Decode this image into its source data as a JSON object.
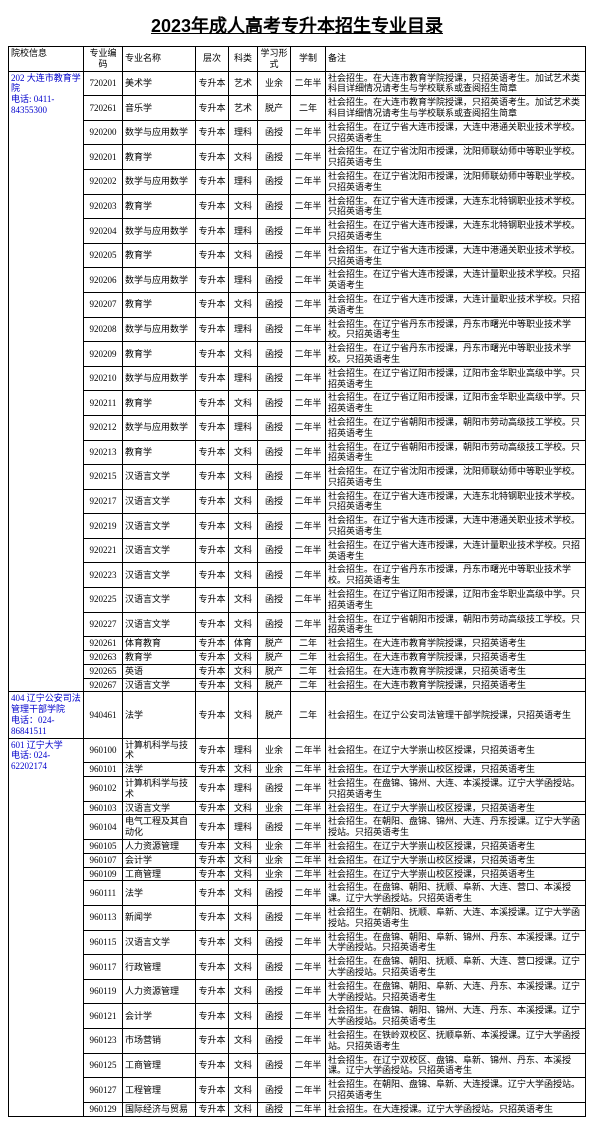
{
  "title": "2023年成人高考专升本招生专业目录",
  "headers": [
    "院校信息",
    "专业编码",
    "专业名称",
    "层次",
    "科类",
    "学习形式",
    "学制",
    "备注"
  ],
  "schools": [
    {
      "info": "202 大连市教育学院\n电话: 0411-84355300",
      "rows": [
        {
          "code": "720201",
          "major": "美术学",
          "level": "专升本",
          "subj": "艺术",
          "mode": "业余",
          "dur": "二年半",
          "remark": "社会招生。在大连市教育学院授课，只招英语考生。加试艺术类科目详细情况请考生与学校联系或查阅招生简章"
        },
        {
          "code": "720261",
          "major": "音乐学",
          "level": "专升本",
          "subj": "艺术",
          "mode": "脱产",
          "dur": "二年",
          "remark": "社会招生。在大连市教育学院授课，只招英语考生。加试艺术类科目详细情况请考生与学校联系或查阅招生简章"
        },
        {
          "code": "920200",
          "major": "数学与应用数学",
          "level": "专升本",
          "subj": "理科",
          "mode": "函授",
          "dur": "二年半",
          "remark": "社会招生。在辽宁省大连市授课，大连中港通关职业技术学校。只招英语考生"
        },
        {
          "code": "920201",
          "major": "教育学",
          "level": "专升本",
          "subj": "文科",
          "mode": "函授",
          "dur": "二年半",
          "remark": "社会招生。在辽宁省沈阳市授课，沈阳师联幼师中等职业学校。只招英语考生"
        },
        {
          "code": "920202",
          "major": "数学与应用数学",
          "level": "专升本",
          "subj": "理科",
          "mode": "函授",
          "dur": "二年半",
          "remark": "社会招生。在辽宁省沈阳市授课，沈阳师联幼师中等职业学校。只招英语考生"
        },
        {
          "code": "920203",
          "major": "教育学",
          "level": "专升本",
          "subj": "文科",
          "mode": "函授",
          "dur": "二年半",
          "remark": "社会招生。在辽宁省大连市授课，大连东北特钢职业技术学校。只招英语考生"
        },
        {
          "code": "920204",
          "major": "数学与应用数学",
          "level": "专升本",
          "subj": "理科",
          "mode": "函授",
          "dur": "二年半",
          "remark": "社会招生。在辽宁省大连市授课，大连东北特钢职业技术学校。只招英语考生"
        },
        {
          "code": "920205",
          "major": "教育学",
          "level": "专升本",
          "subj": "文科",
          "mode": "函授",
          "dur": "二年半",
          "remark": "社会招生。在辽宁省大连市授课，大连中港通关职业技术学校。只招英语考生"
        },
        {
          "code": "920206",
          "major": "数学与应用数学",
          "level": "专升本",
          "subj": "理科",
          "mode": "函授",
          "dur": "二年半",
          "remark": "社会招生。在辽宁省大连市授课，大连计量职业技术学校。只招英语考生"
        },
        {
          "code": "920207",
          "major": "教育学",
          "level": "专升本",
          "subj": "文科",
          "mode": "函授",
          "dur": "二年半",
          "remark": "社会招生。在辽宁省大连市授课，大连计量职业技术学校。只招英语考生"
        },
        {
          "code": "920208",
          "major": "数学与应用数学",
          "level": "专升本",
          "subj": "理科",
          "mode": "函授",
          "dur": "二年半",
          "remark": "社会招生。在辽宁省丹东市授课，丹东市曙光中等职业技术学校。只招英语考生"
        },
        {
          "code": "920209",
          "major": "教育学",
          "level": "专升本",
          "subj": "文科",
          "mode": "函授",
          "dur": "二年半",
          "remark": "社会招生。在辽宁省丹东市授课，丹东市曙光中等职业技术学校。只招英语考生"
        },
        {
          "code": "920210",
          "major": "数学与应用数学",
          "level": "专升本",
          "subj": "理科",
          "mode": "函授",
          "dur": "二年半",
          "remark": "社会招生。在辽宁省辽阳市授课，辽阳市金华职业高级中学。只招英语考生"
        },
        {
          "code": "920211",
          "major": "教育学",
          "level": "专升本",
          "subj": "文科",
          "mode": "函授",
          "dur": "二年半",
          "remark": "社会招生。在辽宁省辽阳市授课，辽阳市金华职业高级中学。只招英语考生"
        },
        {
          "code": "920212",
          "major": "数学与应用数学",
          "level": "专升本",
          "subj": "理科",
          "mode": "函授",
          "dur": "二年半",
          "remark": "社会招生。在辽宁省朝阳市授课，朝阳市劳动高级技工学校。只招英语考生"
        },
        {
          "code": "920213",
          "major": "教育学",
          "level": "专升本",
          "subj": "文科",
          "mode": "函授",
          "dur": "二年半",
          "remark": "社会招生。在辽宁省朝阳市授课，朝阳市劳动高级技工学校。只招英语考生"
        },
        {
          "code": "920215",
          "major": "汉语言文学",
          "level": "专升本",
          "subj": "文科",
          "mode": "函授",
          "dur": "二年半",
          "remark": "社会招生。在辽宁省沈阳市授课，沈阳师联幼师中等职业学校。只招英语考生"
        },
        {
          "code": "920217",
          "major": "汉语言文学",
          "level": "专升本",
          "subj": "文科",
          "mode": "函授",
          "dur": "二年半",
          "remark": "社会招生。在辽宁省大连市授课，大连东北特钢职业技术学校。只招英语考生"
        },
        {
          "code": "920219",
          "major": "汉语言文学",
          "level": "专升本",
          "subj": "文科",
          "mode": "函授",
          "dur": "二年半",
          "remark": "社会招生。在辽宁省大连市授课，大连中港通关职业技术学校。只招英语考生"
        },
        {
          "code": "920221",
          "major": "汉语言文学",
          "level": "专升本",
          "subj": "文科",
          "mode": "函授",
          "dur": "二年半",
          "remark": "社会招生。在辽宁省大连市授课，大连计量职业技术学校。只招英语考生"
        },
        {
          "code": "920223",
          "major": "汉语言文学",
          "level": "专升本",
          "subj": "文科",
          "mode": "函授",
          "dur": "二年半",
          "remark": "社会招生。在辽宁省丹东市授课，丹东市曙光中等职业技术学校。只招英语考生"
        },
        {
          "code": "920225",
          "major": "汉语言文学",
          "level": "专升本",
          "subj": "文科",
          "mode": "函授",
          "dur": "二年半",
          "remark": "社会招生。在辽宁省辽阳市授课，辽阳市金华职业高级中学。只招英语考生"
        },
        {
          "code": "920227",
          "major": "汉语言文学",
          "level": "专升本",
          "subj": "文科",
          "mode": "函授",
          "dur": "二年半",
          "remark": "社会招生。在辽宁省朝阳市授课，朝阳市劳动高级技工学校。只招英语考生"
        },
        {
          "code": "920261",
          "major": "体育教育",
          "level": "专升本",
          "subj": "体育",
          "mode": "脱产",
          "dur": "二年",
          "remark": "社会招生。在大连市教育学院授课，只招英语考生"
        },
        {
          "code": "920263",
          "major": "教育学",
          "level": "专升本",
          "subj": "文科",
          "mode": "脱产",
          "dur": "二年",
          "remark": "社会招生。在大连市教育学院授课，只招英语考生"
        },
        {
          "code": "920265",
          "major": "英语",
          "level": "专升本",
          "subj": "文科",
          "mode": "脱产",
          "dur": "二年",
          "remark": "社会招生。在大连市教育学院授课，只招英语考生"
        },
        {
          "code": "920267",
          "major": "汉语言文学",
          "level": "专升本",
          "subj": "文科",
          "mode": "脱产",
          "dur": "二年",
          "remark": "社会招生。在大连市教育学院授课，只招英语考生"
        }
      ]
    },
    {
      "info": "404 辽宁公安司法管理干部学院\n电话：024-86841511",
      "rows": [
        {
          "code": "940461",
          "major": "法学",
          "level": "专升本",
          "subj": "文科",
          "mode": "脱产",
          "dur": "二年",
          "remark": "社会招生。在辽宁公安司法管理干部学院授课，只招英语考生"
        }
      ]
    },
    {
      "info": "601 辽宁大学\n电话: 024-62202174",
      "rows": [
        {
          "code": "960100",
          "major": "计算机科学与技术",
          "level": "专升本",
          "subj": "理科",
          "mode": "业余",
          "dur": "二年半",
          "remark": "社会招生。在辽宁大学崇山校区授课，只招英语考生"
        },
        {
          "code": "960101",
          "major": "法学",
          "level": "专升本",
          "subj": "文科",
          "mode": "业余",
          "dur": "二年半",
          "remark": "社会招生。在辽宁大学崇山校区授课，只招英语考生"
        },
        {
          "code": "960102",
          "major": "计算机科学与技术",
          "level": "专升本",
          "subj": "理科",
          "mode": "函授",
          "dur": "二年半",
          "remark": "社会招生。在盘锦、锦州、大连、本溪授课。辽宁大学函授站。只招英语考生"
        },
        {
          "code": "960103",
          "major": "汉语言文学",
          "level": "专升本",
          "subj": "文科",
          "mode": "业余",
          "dur": "二年半",
          "remark": "社会招生。在辽宁大学崇山校区授课，只招英语考生"
        },
        {
          "code": "960104",
          "major": "电气工程及其自动化",
          "level": "专升本",
          "subj": "理科",
          "mode": "函授",
          "dur": "二年半",
          "remark": "社会招生。在朝阳、盘锦、锦州、大连、丹东授课。辽宁大学函授站。只招英语考生"
        },
        {
          "code": "960105",
          "major": "人力资源管理",
          "level": "专升本",
          "subj": "文科",
          "mode": "业余",
          "dur": "二年半",
          "remark": "社会招生。在辽宁大学崇山校区授课，只招英语考生"
        },
        {
          "code": "960107",
          "major": "会计学",
          "level": "专升本",
          "subj": "文科",
          "mode": "业余",
          "dur": "二年半",
          "remark": "社会招生。在辽宁大学崇山校区授课，只招英语考生"
        },
        {
          "code": "960109",
          "major": "工商管理",
          "level": "专升本",
          "subj": "文科",
          "mode": "业余",
          "dur": "二年半",
          "remark": "社会招生。在辽宁大学崇山校区授课，只招英语考生"
        },
        {
          "code": "960111",
          "major": "法学",
          "level": "专升本",
          "subj": "文科",
          "mode": "函授",
          "dur": "二年半",
          "remark": "社会招生。在盘锦、朝阳、抚顺、阜新、大连、营口、本溪授课。辽宁大学函授站。只招英语考生"
        },
        {
          "code": "960113",
          "major": "新闻学",
          "level": "专升本",
          "subj": "文科",
          "mode": "函授",
          "dur": "二年半",
          "remark": "社会招生。在朝阳、抚顺、阜新、大连、本溪授课。辽宁大学函授站。只招英语考生"
        },
        {
          "code": "960115",
          "major": "汉语言文学",
          "level": "专升本",
          "subj": "文科",
          "mode": "函授",
          "dur": "二年半",
          "remark": "社会招生。在盘锦、朝阳、阜新、锦州、丹东、本溪授课。辽宁大学函授站。只招英语考生"
        },
        {
          "code": "960117",
          "major": "行政管理",
          "level": "专升本",
          "subj": "文科",
          "mode": "函授",
          "dur": "二年半",
          "remark": "社会招生。在盘锦、朝阳、抚顺、阜新、大连、营口授课。辽宁大学函授站。只招英语考生"
        },
        {
          "code": "960119",
          "major": "人力资源管理",
          "level": "专升本",
          "subj": "文科",
          "mode": "函授",
          "dur": "二年半",
          "remark": "社会招生。在盘锦、朝阳、阜新、大连、丹东、本溪授课。辽宁大学函授站。只招英语考生"
        },
        {
          "code": "960121",
          "major": "会计学",
          "level": "专升本",
          "subj": "文科",
          "mode": "函授",
          "dur": "二年半",
          "remark": "社会招生。在盘锦、朝阳、锦州、大连、丹东、本溪授课。辽宁大学函授站。只招英语考生"
        },
        {
          "code": "960123",
          "major": "市场营销",
          "level": "专升本",
          "subj": "文科",
          "mode": "函授",
          "dur": "二年半",
          "remark": "社会招生。在铁岭双校区、抚顺阜新、本溪授课。辽宁大学函授站。只招英语考生"
        },
        {
          "code": "960125",
          "major": "工商管理",
          "level": "专升本",
          "subj": "文科",
          "mode": "函授",
          "dur": "二年半",
          "remark": "社会招生。在辽宁双校区、盘锦、阜新、锦州、丹东、本溪授课。辽宁大学函授站。只招英语考生"
        },
        {
          "code": "960127",
          "major": "工程管理",
          "level": "专升本",
          "subj": "文科",
          "mode": "函授",
          "dur": "二年半",
          "remark": "社会招生。在朝阳、盘锦、阜新、大连授课。辽宁大学函授站。只招英语考生"
        },
        {
          "code": "960129",
          "major": "国际经济与贸易",
          "level": "专升本",
          "subj": "文科",
          "mode": "函授",
          "dur": "二年半",
          "remark": "社会招生。在大连授课。辽宁大学函授站。只招英语考生"
        }
      ]
    }
  ]
}
